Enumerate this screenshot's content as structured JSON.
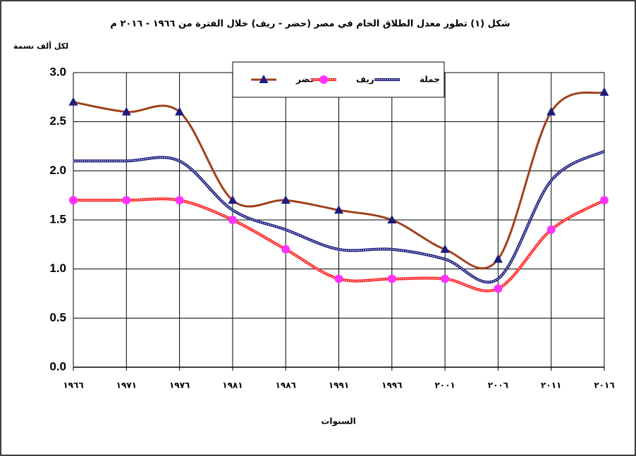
{
  "chart_data": {
    "type": "line",
    "title": "شكل (١) تطور معدل الطلاق الخام في مصر (حضر - ريف) خلال الفترة من ١٩٦٦ - ٢٠١٦ م",
    "y_label": "لكل ألف نسمة",
    "x_label": "السنوات",
    "categories": [
      "١٩٦٦",
      "١٩٧١",
      "١٩٧٦",
      "١٩٨١",
      "١٩٨٦",
      "١٩٩١",
      "١٩٩٦",
      "٢٠٠١",
      "٢٠٠٦",
      "٢٠١١",
      "٢٠١٦"
    ],
    "series": [
      {
        "name": "حضر",
        "color": "#a0401c",
        "marker": "triangle",
        "marker_color": "#1c1c80",
        "style": "solid",
        "values": [
          2.7,
          2.6,
          2.6,
          1.7,
          1.7,
          1.6,
          1.5,
          1.2,
          1.1,
          2.6,
          2.8
        ]
      },
      {
        "name": "ريف",
        "color": "#ff2020",
        "marker": "circle",
        "marker_color": "#ff33ff",
        "style": "dotted",
        "values": [
          1.7,
          1.7,
          1.7,
          1.5,
          1.2,
          0.9,
          0.9,
          0.9,
          0.8,
          1.4,
          1.7
        ]
      },
      {
        "name": "جملة",
        "color": "#1c1c80",
        "marker": "none",
        "style": "dotted",
        "values": [
          2.1,
          2.1,
          2.1,
          1.6,
          1.4,
          1.2,
          1.2,
          1.1,
          0.9,
          1.9,
          2.2
        ]
      }
    ],
    "ylim": [
      0,
      3
    ],
    "yticks": [
      {
        "value": 0,
        "label": "0.0"
      },
      {
        "value": 0.5,
        "label": "0.5"
      },
      {
        "value": 1,
        "label": "1.0"
      },
      {
        "value": 1.5,
        "label": "1.5"
      },
      {
        "value": 2,
        "label": "2.0"
      },
      {
        "value": 2.5,
        "label": "2.5"
      },
      {
        "value": 3,
        "label": "3.0"
      }
    ],
    "grid": true,
    "smooth": true,
    "legend": "top"
  }
}
